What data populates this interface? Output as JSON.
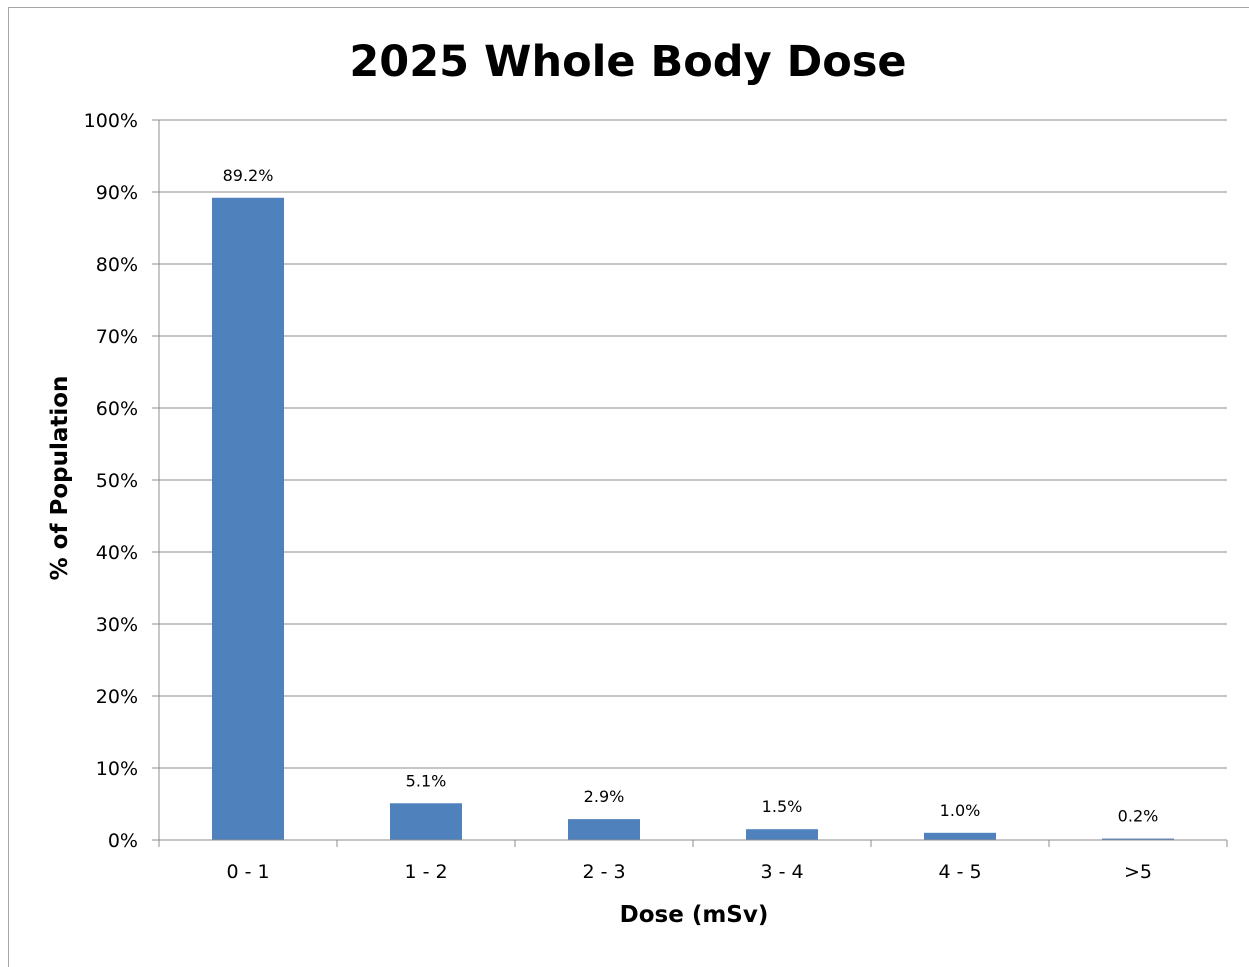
{
  "chart_data": {
    "type": "bar",
    "title": "2025 Whole Body Dose",
    "xlabel": "Dose (mSv)",
    "ylabel": "% of Population",
    "categories": [
      "0 - 1",
      "1 - 2",
      "2 - 3",
      "3 - 4",
      "4 - 5",
      ">5"
    ],
    "values": [
      89.2,
      5.1,
      2.9,
      1.5,
      1.0,
      0.2
    ],
    "data_labels": [
      "89.2%",
      "5.1%",
      "2.9%",
      "1.5%",
      "1.0%",
      "0.2%"
    ],
    "ylim": [
      0,
      100
    ],
    "yticks": [
      0,
      10,
      20,
      30,
      40,
      50,
      60,
      70,
      80,
      90,
      100
    ],
    "ytick_labels": [
      "0%",
      "10%",
      "20%",
      "30%",
      "40%",
      "50%",
      "60%",
      "70%",
      "80%",
      "90%",
      "100%"
    ],
    "grid": true,
    "legend": "none",
    "colors": {
      "bar": "#4f81bd",
      "grid": "#8c8c8c",
      "axis": "#8c8c8c"
    }
  }
}
